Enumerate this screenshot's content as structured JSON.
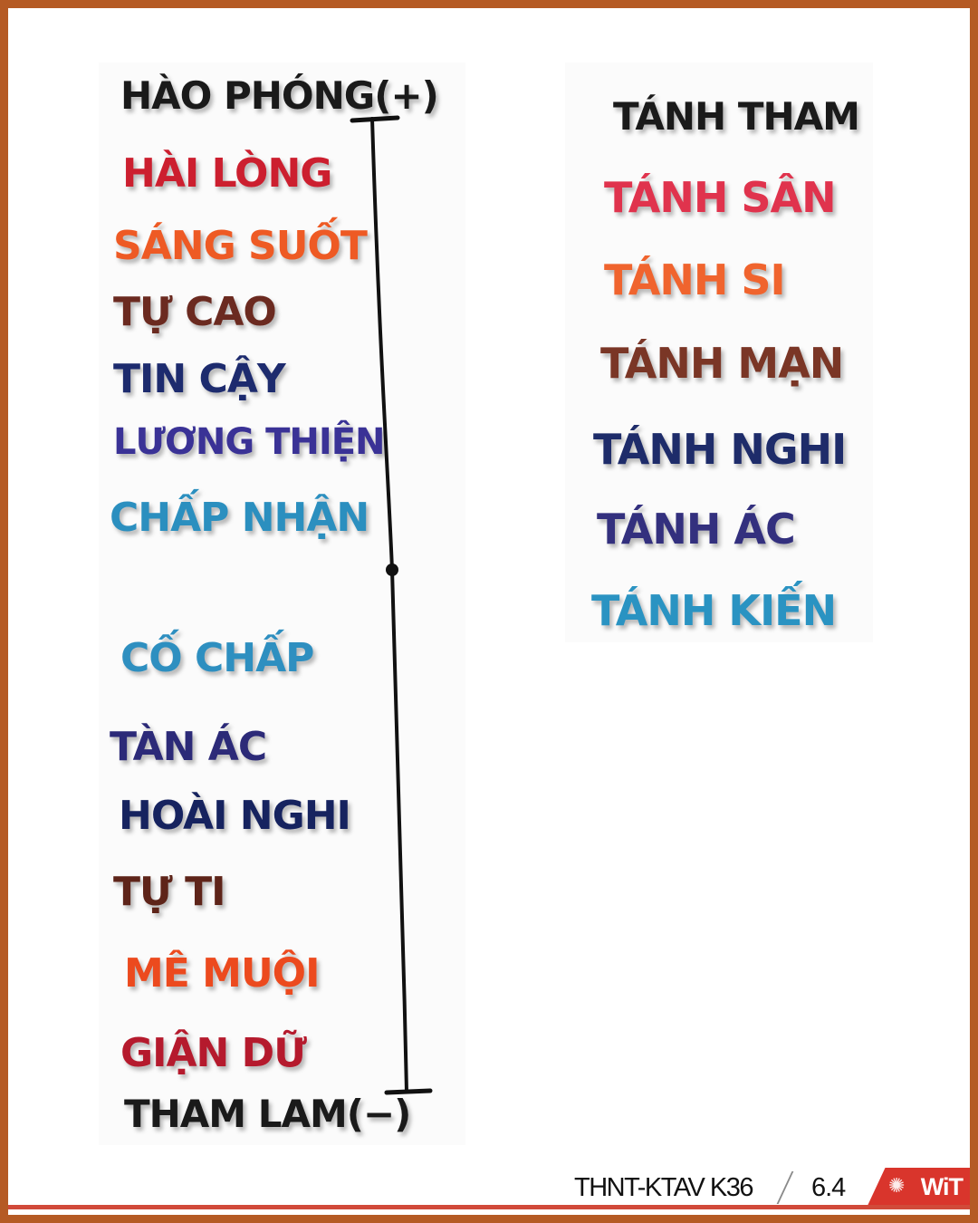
{
  "left_column": {
    "top_label": "HÀO PHÓNG(+)",
    "positive": [
      {
        "text": "HÀI LÒNG",
        "color": "#cc1f2f"
      },
      {
        "text": "SÁNG SUỐT",
        "color": "#ee5a24"
      },
      {
        "text": "TỰ CAO",
        "color": "#6b2a20"
      },
      {
        "text": "TIN CẬY",
        "color": "#1d2b6e"
      },
      {
        "text": "LƯƠNG THIỆN",
        "color": "#3a3296"
      },
      {
        "text": "CHẤP NHẬN",
        "color": "#2b8fbf"
      }
    ],
    "negative": [
      {
        "text": "CỐ CHẤP",
        "color": "#2e8fc0"
      },
      {
        "text": "TÀN ÁC",
        "color": "#2c2a78"
      },
      {
        "text": "HOÀI NGHI",
        "color": "#16235f"
      },
      {
        "text": "TỰ TI",
        "color": "#5e2419"
      },
      {
        "text": "MÊ MUỘI",
        "color": "#ec4a1e"
      },
      {
        "text": "GIẬN DỮ",
        "color": "#b51a2d"
      }
    ],
    "bottom_label": "THAM LAM(−)"
  },
  "right_column": {
    "items": [
      {
        "text": "TÁNH THAM",
        "color": "#1a1a1a"
      },
      {
        "text": "TÁNH SÂN",
        "color": "#e0334d"
      },
      {
        "text": "TÁNH SI",
        "color": "#f0642e"
      },
      {
        "text": "TÁNH MẠN",
        "color": "#7a3626"
      },
      {
        "text": "TÁNH NGHI",
        "color": "#1e2c6a"
      },
      {
        "text": "TÁNH ÁC",
        "color": "#33307e"
      },
      {
        "text": "TÁNH KIẾN",
        "color": "#2a93c2"
      }
    ]
  },
  "footer": {
    "course": "THNT-KTAV K36",
    "page": "6.4",
    "logo": "WiT",
    "accent_color": "#d14a3a"
  }
}
